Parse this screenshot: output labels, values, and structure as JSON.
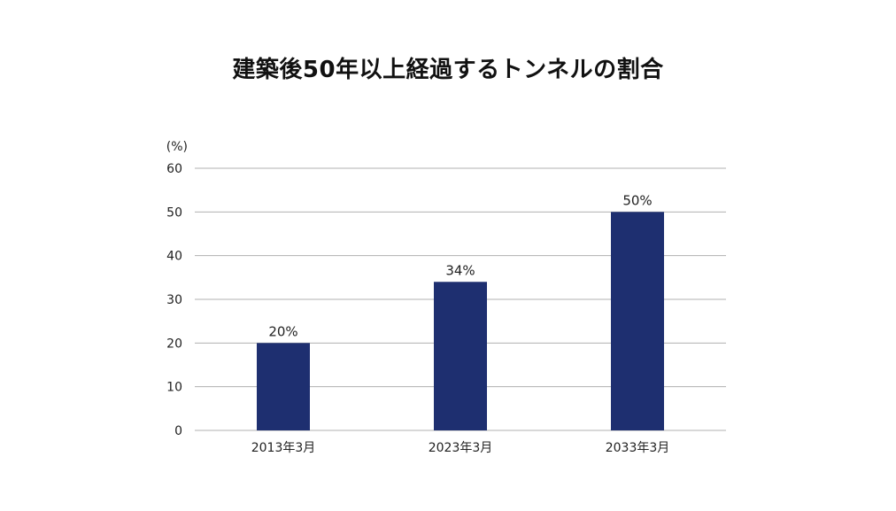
{
  "chart_data": {
    "type": "bar",
    "title": "建築後50年以上経過するトンネルの割合",
    "ylabel": "(%)",
    "categories": [
      "2013年3月",
      "2023年3月",
      "2033年3月"
    ],
    "values": [
      20,
      34,
      50
    ],
    "data_labels": [
      "20%",
      "34%",
      "50%"
    ],
    "ylim": [
      0,
      60
    ],
    "yticks": [
      0,
      10,
      20,
      30,
      40,
      50,
      60
    ],
    "grid": true,
    "legend": "none",
    "bar_color": "#1e2f70",
    "grid_color": "#b0b0b0"
  }
}
